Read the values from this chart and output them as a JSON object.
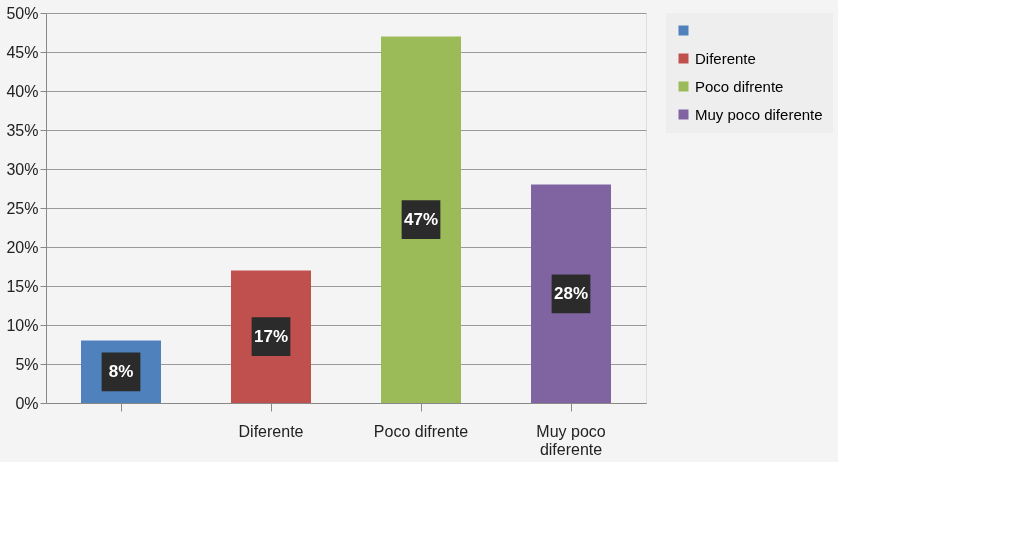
{
  "chart_data": {
    "type": "bar",
    "categories": [
      null,
      "Diferente",
      "Poco difrente",
      "Muy poco diferente"
    ],
    "series": [
      {
        "color": "#4f81bd",
        "values": [
          8,
          null,
          null,
          null
        ],
        "value_labels": [
          "8%",
          null,
          null,
          null
        ]
      },
      {
        "name": "Diferente",
        "color": "#c0504d",
        "values": [
          null,
          17,
          null,
          null
        ],
        "value_labels": [
          null,
          "17%",
          null,
          null
        ]
      },
      {
        "name": "Poco difrente",
        "color": "#9bbb59",
        "values": [
          null,
          null,
          47,
          null
        ],
        "value_labels": [
          null,
          null,
          "47%",
          null
        ]
      },
      {
        "name": "Muy poco diferente",
        "color": "#8064a2",
        "values": [
          null,
          null,
          null,
          28
        ],
        "value_labels": [
          null,
          null,
          null,
          "28%"
        ]
      }
    ],
    "ylim": [
      0,
      50
    ],
    "yticks": [
      {
        "value": 0,
        "label": "0%"
      },
      {
        "value": 5,
        "label": "5%"
      },
      {
        "value": 10,
        "label": "10%"
      },
      {
        "value": 15,
        "label": "15%"
      },
      {
        "value": 20,
        "label": "20%"
      },
      {
        "value": 25,
        "label": "25%"
      },
      {
        "value": 30,
        "label": "30%"
      },
      {
        "value": 35,
        "label": "35%"
      },
      {
        "value": 40,
        "label": "40%"
      },
      {
        "value": 45,
        "label": "45%"
      },
      {
        "value": 50,
        "label": "50%"
      }
    ],
    "grid": "y",
    "legend": "right"
  }
}
